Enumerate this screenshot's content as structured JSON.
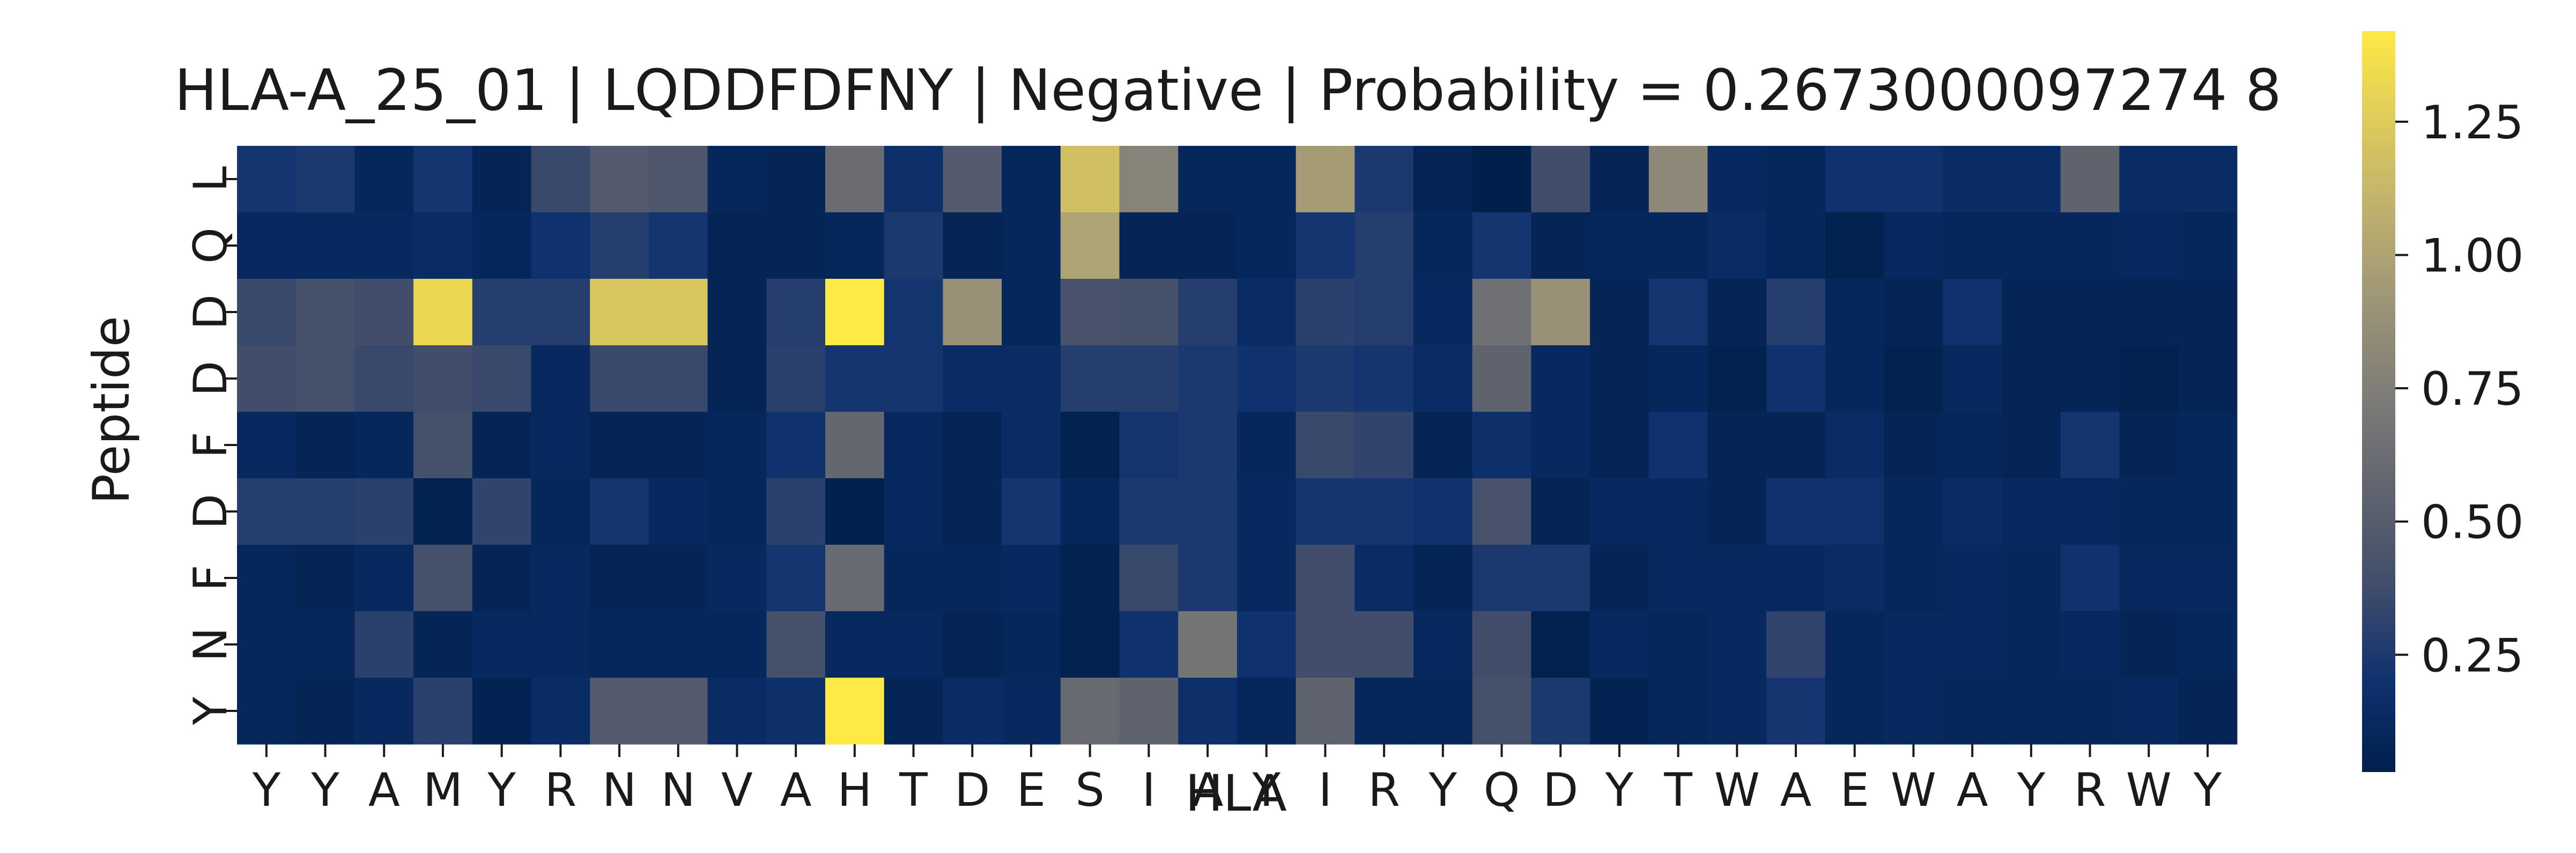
{
  "chart_data": {
    "type": "heatmap",
    "title": "HLA-A_25_01 | LQDDFDFNY | Negative | Probability = 0.2673000097274 8",
    "xlabel": "HLA",
    "ylabel": "Peptide",
    "x_categories": [
      "Y",
      "Y",
      "A",
      "M",
      "Y",
      "R",
      "N",
      "N",
      "V",
      "A",
      "H",
      "T",
      "D",
      "E",
      "S",
      "I",
      "A",
      "Y",
      "I",
      "R",
      "Y",
      "Q",
      "D",
      "Y",
      "T",
      "W",
      "A",
      "E",
      "W",
      "A",
      "Y",
      "R",
      "W",
      "Y"
    ],
    "y_categories": [
      "L",
      "Q",
      "D",
      "D",
      "F",
      "D",
      "F",
      "N",
      "Y"
    ],
    "colormap": "cividis",
    "colorbar": {
      "min": 0.03,
      "max": 1.42,
      "ticks": [
        "0.25",
        "0.50",
        "0.75",
        "1.00",
        "1.25"
      ],
      "tick_values": [
        0.25,
        0.5,
        0.75,
        1.0,
        1.25
      ]
    },
    "values": [
      [
        0.22,
        0.25,
        0.1,
        0.22,
        0.08,
        0.35,
        0.48,
        0.45,
        0.1,
        0.08,
        0.62,
        0.18,
        0.48,
        0.1,
        1.18,
        0.78,
        0.1,
        0.1,
        0.95,
        0.25,
        0.08,
        0.02,
        0.38,
        0.08,
        0.82,
        0.12,
        0.1,
        0.2,
        0.2,
        0.15,
        0.15,
        0.55,
        0.15,
        0.15
      ],
      [
        0.12,
        0.12,
        0.12,
        0.15,
        0.1,
        0.2,
        0.28,
        0.22,
        0.08,
        0.08,
        0.1,
        0.25,
        0.08,
        0.1,
        1.0,
        0.08,
        0.08,
        0.1,
        0.22,
        0.28,
        0.1,
        0.22,
        0.08,
        0.1,
        0.1,
        0.15,
        0.1,
        0.05,
        0.12,
        0.1,
        0.1,
        0.1,
        0.12,
        0.1
      ],
      [
        0.35,
        0.4,
        0.38,
        1.32,
        0.28,
        0.28,
        1.22,
        1.22,
        0.08,
        0.28,
        1.42,
        0.22,
        0.88,
        0.1,
        0.42,
        0.4,
        0.28,
        0.15,
        0.3,
        0.28,
        0.12,
        0.65,
        0.88,
        0.08,
        0.22,
        0.08,
        0.28,
        0.1,
        0.08,
        0.2,
        0.08,
        0.08,
        0.08,
        0.08
      ],
      [
        0.38,
        0.4,
        0.35,
        0.38,
        0.35,
        0.12,
        0.35,
        0.35,
        0.08,
        0.3,
        0.22,
        0.22,
        0.15,
        0.15,
        0.28,
        0.28,
        0.25,
        0.2,
        0.25,
        0.22,
        0.15,
        0.55,
        0.12,
        0.08,
        0.1,
        0.05,
        0.2,
        0.1,
        0.05,
        0.12,
        0.08,
        0.08,
        0.05,
        0.08
      ],
      [
        0.12,
        0.08,
        0.1,
        0.4,
        0.08,
        0.12,
        0.08,
        0.08,
        0.1,
        0.2,
        0.58,
        0.12,
        0.08,
        0.15,
        0.05,
        0.22,
        0.25,
        0.1,
        0.35,
        0.32,
        0.08,
        0.18,
        0.12,
        0.08,
        0.2,
        0.08,
        0.08,
        0.15,
        0.08,
        0.1,
        0.08,
        0.22,
        0.08,
        0.1
      ],
      [
        0.28,
        0.28,
        0.3,
        0.05,
        0.32,
        0.1,
        0.22,
        0.12,
        0.1,
        0.3,
        0.04,
        0.12,
        0.08,
        0.22,
        0.1,
        0.25,
        0.25,
        0.12,
        0.22,
        0.22,
        0.2,
        0.42,
        0.08,
        0.12,
        0.12,
        0.08,
        0.2,
        0.2,
        0.1,
        0.15,
        0.12,
        0.12,
        0.1,
        0.1
      ],
      [
        0.1,
        0.08,
        0.12,
        0.4,
        0.08,
        0.12,
        0.08,
        0.08,
        0.12,
        0.22,
        0.6,
        0.1,
        0.1,
        0.12,
        0.05,
        0.35,
        0.25,
        0.12,
        0.38,
        0.15,
        0.08,
        0.25,
        0.25,
        0.08,
        0.12,
        0.12,
        0.12,
        0.15,
        0.1,
        0.12,
        0.1,
        0.2,
        0.12,
        0.12
      ],
      [
        0.1,
        0.1,
        0.3,
        0.08,
        0.12,
        0.12,
        0.1,
        0.1,
        0.1,
        0.4,
        0.12,
        0.12,
        0.08,
        0.1,
        0.05,
        0.2,
        0.68,
        0.2,
        0.38,
        0.38,
        0.12,
        0.38,
        0.05,
        0.12,
        0.1,
        0.12,
        0.32,
        0.1,
        0.12,
        0.12,
        0.1,
        0.12,
        0.08,
        0.1
      ],
      [
        0.1,
        0.08,
        0.12,
        0.3,
        0.06,
        0.15,
        0.48,
        0.48,
        0.15,
        0.18,
        1.42,
        0.08,
        0.15,
        0.12,
        0.6,
        0.55,
        0.18,
        0.1,
        0.55,
        0.1,
        0.1,
        0.4,
        0.25,
        0.06,
        0.1,
        0.12,
        0.22,
        0.1,
        0.12,
        0.1,
        0.1,
        0.1,
        0.12,
        0.08
      ]
    ]
  }
}
